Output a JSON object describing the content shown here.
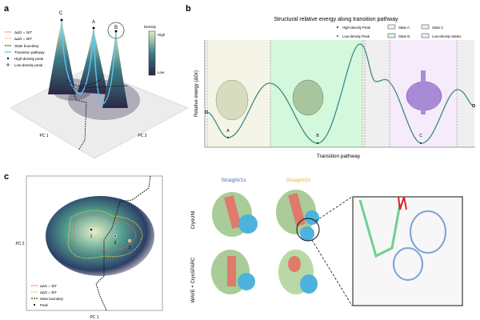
{
  "panel_a": {
    "label": "a",
    "peaks": [
      "C",
      "A",
      "B"
    ],
    "legend": [
      "ΔΔG = 1kT",
      "ΔΔG = 2kT",
      "State boundary",
      "Transition pathway",
      "High-density peak",
      "Low-density peak"
    ],
    "colorbar": {
      "title": "Density",
      "high": "High",
      "low": "Low"
    },
    "axes": {
      "x": "PC 1",
      "y": "PC 2"
    }
  },
  "panel_b": {
    "label": "b",
    "title": "Structural relative energy along transition pathway",
    "legend": {
      "high_peak": "High-density Peak",
      "low_peak": "Low-density Peak",
      "state_a": "State A",
      "state_b": "State B",
      "state_c": "State C",
      "low_states": "Low-density States"
    },
    "ylabel": "Relative energy (ΔGr)",
    "xlabel": "Transition pathway",
    "minima": [
      "A",
      "B",
      "C"
    ],
    "colors": {
      "state_a": "#f4f5e6",
      "state_b": "#d4f8dc",
      "state_c": "#f5ebfa",
      "low_density": "#efefef"
    }
  },
  "panel_c": {
    "label": "c",
    "axes": {
      "x": "PC 1",
      "y": "PC 2"
    },
    "peaks": [
      "1",
      "2",
      "3"
    ],
    "legend": [
      "ΔΔG = 1kT",
      "ΔΔG = 2kT",
      "State boundary",
      "Peak"
    ]
  },
  "panel_d": {
    "columns": [
      "Straight/1x",
      "Straight/2x"
    ],
    "rows": [
      "CryoUNI",
      "WAVE + CryoSPARC"
    ],
    "colors": {
      "col1": "#4a6fb5",
      "col2": "#e8b04a"
    }
  }
}
